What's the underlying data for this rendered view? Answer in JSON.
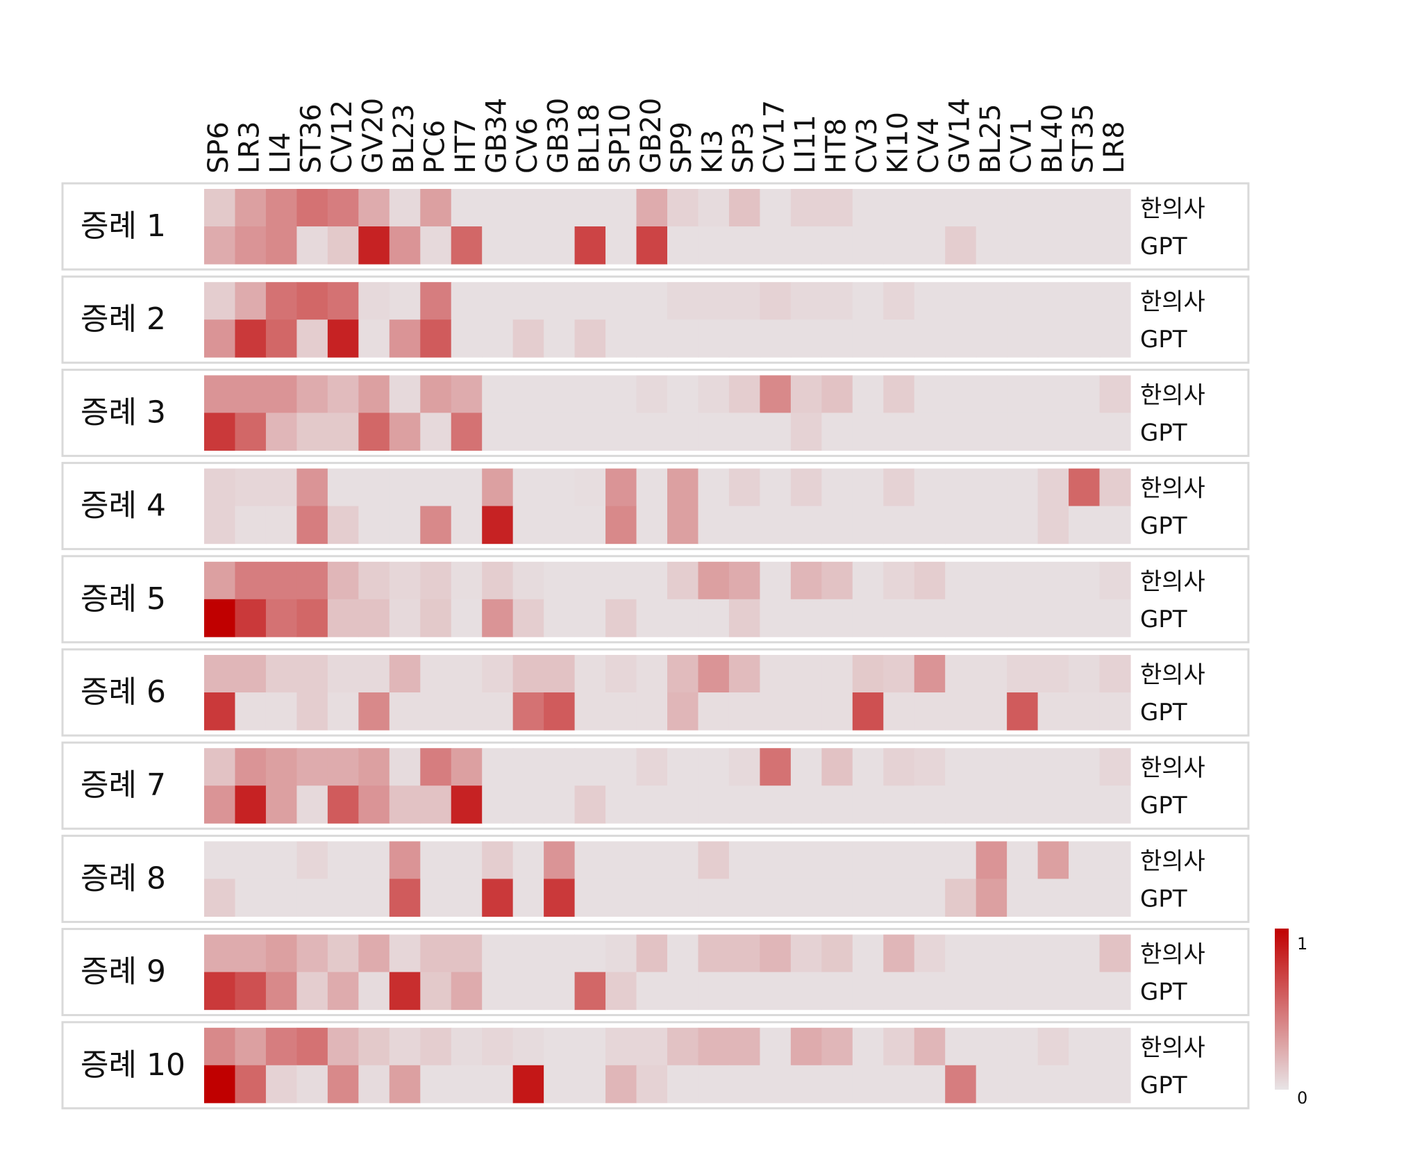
{
  "chart_data": {
    "type": "heatmap",
    "color_scale": {
      "low": "#e8e4e6",
      "high": "#c00000",
      "min_label": "0",
      "max_label": "1"
    },
    "columns": [
      "SP6",
      "LR3",
      "LI4",
      "ST36",
      "CV12",
      "GV20",
      "BL23",
      "PC6",
      "HT7",
      "GB34",
      "CV6",
      "GB30",
      "BL18",
      "SP10",
      "GB20",
      "SP9",
      "KI3",
      "SP3",
      "CV17",
      "LI11",
      "HT8",
      "CV3",
      "KI10",
      "CV4",
      "GV14",
      "BL25",
      "CV1",
      "BL40",
      "ST35",
      "LR8"
    ],
    "row_labels": [
      "한의사",
      "GPT"
    ],
    "cases": [
      {
        "label": "증례 1",
        "한의사": [
          0.12,
          0.3,
          0.4,
          0.5,
          0.45,
          0.25,
          0.05,
          0.3,
          0.02,
          0.02,
          0.02,
          0.02,
          0.02,
          0.02,
          0.25,
          0.08,
          0.04,
          0.15,
          0.02,
          0.08,
          0.08,
          0.02,
          0.02,
          0.02,
          0.02,
          0.02,
          0.02,
          0.02,
          0.02,
          0.02
        ],
        "GPT": [
          0.25,
          0.35,
          0.4,
          0.05,
          0.12,
          0.85,
          0.35,
          0.05,
          0.55,
          0.02,
          0.02,
          0.02,
          0.7,
          0.02,
          0.7,
          0.02,
          0.02,
          0.02,
          0.02,
          0.02,
          0.02,
          0.02,
          0.02,
          0.02,
          0.1,
          0.02,
          0.02,
          0.02,
          0.02,
          0.02
        ]
      },
      {
        "label": "증례 2",
        "한의사": [
          0.1,
          0.25,
          0.5,
          0.55,
          0.5,
          0.05,
          0.03,
          0.45,
          0.02,
          0.02,
          0.02,
          0.02,
          0.02,
          0.02,
          0.02,
          0.05,
          0.05,
          0.05,
          0.08,
          0.05,
          0.05,
          0.02,
          0.06,
          0.02,
          0.02,
          0.02,
          0.02,
          0.02,
          0.02,
          0.02
        ],
        "GPT": [
          0.35,
          0.75,
          0.55,
          0.1,
          0.85,
          0.03,
          0.35,
          0.6,
          0.02,
          0.02,
          0.1,
          0.02,
          0.1,
          0.02,
          0.02,
          0.02,
          0.02,
          0.02,
          0.02,
          0.02,
          0.02,
          0.02,
          0.02,
          0.02,
          0.02,
          0.02,
          0.02,
          0.02,
          0.02,
          0.02
        ]
      },
      {
        "label": "증례 3",
        "한의사": [
          0.35,
          0.35,
          0.35,
          0.25,
          0.18,
          0.3,
          0.05,
          0.3,
          0.25,
          0.02,
          0.02,
          0.02,
          0.02,
          0.02,
          0.05,
          0.02,
          0.05,
          0.1,
          0.4,
          0.1,
          0.15,
          0.02,
          0.1,
          0.02,
          0.02,
          0.02,
          0.02,
          0.02,
          0.02,
          0.08
        ],
        "GPT": [
          0.75,
          0.55,
          0.2,
          0.12,
          0.12,
          0.55,
          0.3,
          0.05,
          0.5,
          0.02,
          0.02,
          0.02,
          0.02,
          0.02,
          0.02,
          0.02,
          0.02,
          0.02,
          0.02,
          0.08,
          0.02,
          0.02,
          0.02,
          0.02,
          0.02,
          0.02,
          0.02,
          0.02,
          0.02,
          0.02
        ]
      },
      {
        "label": "증례 4",
        "한의사": [
          0.08,
          0.06,
          0.06,
          0.35,
          0.02,
          0.02,
          0.02,
          0.02,
          0.02,
          0.3,
          0.02,
          0.02,
          0.03,
          0.35,
          0.02,
          0.3,
          0.02,
          0.08,
          0.02,
          0.08,
          0.02,
          0.02,
          0.08,
          0.02,
          0.02,
          0.02,
          0.02,
          0.08,
          0.55,
          0.1
        ],
        "GPT": [
          0.08,
          0.03,
          0.03,
          0.45,
          0.1,
          0.02,
          0.02,
          0.4,
          0.02,
          0.85,
          0.02,
          0.02,
          0.02,
          0.4,
          0.02,
          0.3,
          0.02,
          0.02,
          0.02,
          0.02,
          0.02,
          0.02,
          0.02,
          0.02,
          0.02,
          0.02,
          0.02,
          0.08,
          0.02,
          0.02
        ]
      },
      {
        "label": "증례 5",
        "한의사": [
          0.3,
          0.45,
          0.45,
          0.45,
          0.2,
          0.1,
          0.06,
          0.1,
          0.03,
          0.1,
          0.04,
          0.02,
          0.02,
          0.02,
          0.02,
          0.1,
          0.3,
          0.25,
          0.02,
          0.2,
          0.15,
          0.02,
          0.06,
          0.1,
          0.02,
          0.02,
          0.02,
          0.02,
          0.02,
          0.05
        ],
        "GPT": [
          1.0,
          0.75,
          0.5,
          0.55,
          0.15,
          0.15,
          0.05,
          0.12,
          0.02,
          0.35,
          0.1,
          0.02,
          0.02,
          0.1,
          0.02,
          0.02,
          0.02,
          0.1,
          0.02,
          0.02,
          0.02,
          0.02,
          0.02,
          0.02,
          0.02,
          0.02,
          0.02,
          0.02,
          0.02,
          0.02
        ]
      },
      {
        "label": "증례 6",
        "한의사": [
          0.2,
          0.2,
          0.1,
          0.1,
          0.05,
          0.05,
          0.2,
          0.03,
          0.03,
          0.06,
          0.15,
          0.15,
          0.03,
          0.06,
          0.03,
          0.18,
          0.35,
          0.18,
          0.03,
          0.03,
          0.03,
          0.12,
          0.1,
          0.35,
          0.03,
          0.03,
          0.06,
          0.06,
          0.04,
          0.08
        ],
        "GPT": [
          0.75,
          0.03,
          0.03,
          0.1,
          0.03,
          0.4,
          0.03,
          0.03,
          0.03,
          0.03,
          0.5,
          0.6,
          0.03,
          0.03,
          0.03,
          0.2,
          0.03,
          0.03,
          0.03,
          0.03,
          0.03,
          0.65,
          0.03,
          0.03,
          0.03,
          0.03,
          0.6,
          0.03,
          0.03,
          0.03
        ]
      },
      {
        "label": "증례 7",
        "한의사": [
          0.15,
          0.35,
          0.3,
          0.25,
          0.25,
          0.3,
          0.04,
          0.45,
          0.3,
          0.02,
          0.02,
          0.02,
          0.02,
          0.02,
          0.06,
          0.02,
          0.02,
          0.05,
          0.5,
          0.02,
          0.15,
          0.02,
          0.08,
          0.06,
          0.02,
          0.02,
          0.02,
          0.02,
          0.02,
          0.06
        ],
        "GPT": [
          0.35,
          0.85,
          0.3,
          0.05,
          0.6,
          0.35,
          0.15,
          0.15,
          0.85,
          0.02,
          0.02,
          0.02,
          0.1,
          0.02,
          0.02,
          0.02,
          0.02,
          0.02,
          0.02,
          0.02,
          0.02,
          0.02,
          0.02,
          0.02,
          0.02,
          0.02,
          0.02,
          0.02,
          0.02,
          0.02
        ]
      },
      {
        "label": "증례 8",
        "한의사": [
          0.02,
          0.02,
          0.02,
          0.06,
          0.02,
          0.02,
          0.35,
          0.02,
          0.02,
          0.1,
          0.02,
          0.35,
          0.02,
          0.02,
          0.02,
          0.02,
          0.1,
          0.02,
          0.02,
          0.02,
          0.02,
          0.02,
          0.02,
          0.02,
          0.02,
          0.35,
          0.02,
          0.3,
          0.02,
          0.02
        ],
        "GPT": [
          0.1,
          0.02,
          0.02,
          0.02,
          0.02,
          0.02,
          0.6,
          0.02,
          0.02,
          0.75,
          0.02,
          0.75,
          0.02,
          0.02,
          0.02,
          0.02,
          0.02,
          0.02,
          0.02,
          0.02,
          0.02,
          0.02,
          0.02,
          0.02,
          0.12,
          0.3,
          0.02,
          0.02,
          0.02,
          0.02
        ]
      },
      {
        "label": "증례 9",
        "한의사": [
          0.25,
          0.25,
          0.3,
          0.2,
          0.12,
          0.25,
          0.06,
          0.15,
          0.15,
          0.02,
          0.02,
          0.02,
          0.02,
          0.04,
          0.15,
          0.02,
          0.15,
          0.15,
          0.2,
          0.08,
          0.12,
          0.02,
          0.2,
          0.06,
          0.02,
          0.02,
          0.02,
          0.02,
          0.02,
          0.15
        ],
        "GPT": [
          0.75,
          0.65,
          0.4,
          0.1,
          0.25,
          0.04,
          0.8,
          0.12,
          0.25,
          0.02,
          0.02,
          0.02,
          0.55,
          0.1,
          0.02,
          0.02,
          0.02,
          0.02,
          0.02,
          0.02,
          0.02,
          0.02,
          0.02,
          0.02,
          0.02,
          0.02,
          0.02,
          0.02,
          0.02,
          0.02
        ]
      },
      {
        "label": "증례 10",
        "한의사": [
          0.4,
          0.3,
          0.45,
          0.5,
          0.2,
          0.12,
          0.06,
          0.1,
          0.04,
          0.06,
          0.04,
          0.02,
          0.02,
          0.06,
          0.06,
          0.15,
          0.2,
          0.2,
          0.02,
          0.25,
          0.2,
          0.02,
          0.08,
          0.2,
          0.02,
          0.02,
          0.02,
          0.06,
          0.02,
          0.02
        ],
        "GPT": [
          1.0,
          0.55,
          0.08,
          0.04,
          0.4,
          0.04,
          0.3,
          0.02,
          0.02,
          0.02,
          0.9,
          0.02,
          0.02,
          0.2,
          0.08,
          0.02,
          0.02,
          0.02,
          0.02,
          0.02,
          0.02,
          0.02,
          0.02,
          0.02,
          0.45,
          0.02,
          0.02,
          0.02,
          0.02,
          0.02
        ]
      }
    ]
  }
}
